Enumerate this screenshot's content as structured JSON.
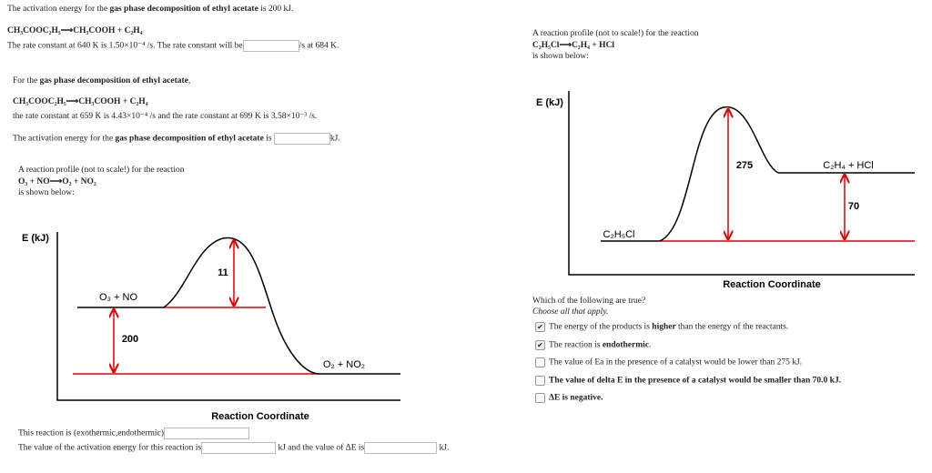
{
  "problem1": {
    "intro": [
      "The activation energy for the ",
      "gas phase decomposition of ethyl acetate",
      " is 200 kJ."
    ],
    "equation": "CH₃COOC₂H₅⟶CH₃COOH + C₂H₄",
    "question": [
      "The rate constant at 640 K is 1.50×10⁻⁴ /s. The rate constant will be",
      "/s at 684 K."
    ]
  },
  "problem2": {
    "intro": [
      "For the ",
      "gas phase decomposition of ethyl acetate",
      ","
    ],
    "equation": "CH₃COOC₂H₅⟶CH₃COOH + C₂H₄",
    "given": "the rate constant at 659 K is 4.43×10⁻⁴ /s and the rate constant at 699 K is 3.58×10⁻³ /s.",
    "question": [
      "The activation energy for the ",
      "gas phase decomposition of ethyl acetate",
      " is",
      "kJ."
    ]
  },
  "problem3": {
    "intro": "A reaction profile (not to scale!) for the reaction",
    "equation": "O₃ + NO⟶O₂ + NO₂",
    "shown": "is shown below:",
    "diagram": {
      "y_label": "E (kJ)",
      "x_label": "Reaction Coordinate",
      "reactants": "O₃ + NO",
      "products": "O₂ + NO₂",
      "barrier": "11",
      "delta": "200"
    },
    "question1": "This reaction is (exothermic,endothermic)",
    "question2": [
      "The value of the activation energy for this reaction is",
      "kJ and the value of ΔE is",
      "kJ."
    ]
  },
  "problem4": {
    "intro": "A reaction profile (not to scale!) for the reaction",
    "equation": "C₂H₅Cl⟶C₂H₄ + HCl",
    "shown": "is shown below:",
    "diagram": {
      "y_label": "E (kJ)",
      "x_label": "Reaction Coordinate",
      "reactants": "C₂H₅Cl",
      "products": "C₂H₄ + HCl",
      "barrier": "275",
      "delta": "70"
    },
    "prompt": "Which of the following are true?",
    "hint": "Choose all that apply.",
    "options": [
      {
        "text": [
          "The energy of the products is ",
          "higher",
          " than the energy of the reactants."
        ],
        "checked": true
      },
      {
        "text": [
          "The reaction is ",
          "endothermic",
          "."
        ],
        "checked": true
      },
      {
        "text": [
          "The value of Ea in the presence of a catalyst would be lower than 275 kJ."
        ],
        "checked": false
      },
      {
        "text": [
          "The value of delta E in the presence of a catalyst would be smaller than 70.0 kJ."
        ],
        "checked": false
      },
      {
        "text": [
          "ΔE is negative."
        ],
        "checked": false
      }
    ]
  }
}
